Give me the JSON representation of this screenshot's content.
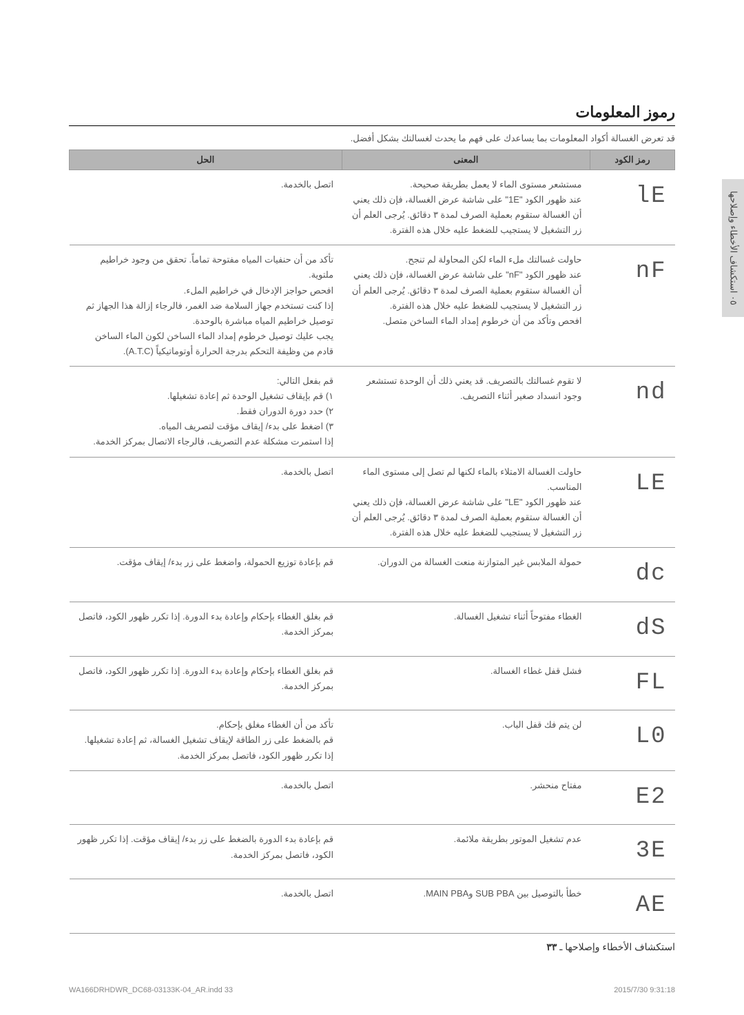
{
  "section_title": "رموز المعلومات",
  "intro": "قد تعرض الغسالة أكواد المعلومات بما يساعدك على فهم ما يحدث لغسالتك بشكل أفضل.",
  "side_tab": "٠٥ استكشاف الأخطاء وإصلاحها",
  "headers": {
    "code": "رمز الكود",
    "meaning": "المعنى",
    "solution": "الحل"
  },
  "rows": [
    {
      "code_glyph": "lE",
      "meaning": "مستشعر مستوى الماء لا يعمل بطريقة صحيحة.\nعند ظهور الكود \"1E\" على شاشة عرض الغسالة، فإن ذلك يعني أن الغسالة ستقوم بعملية الصرف لمدة ٣ دقائق. يُرجى العلم أن زر التشغيل لا يستجيب للضغط عليه خلال هذه الفترة.",
      "solution": "اتصل بالخدمة."
    },
    {
      "code_glyph": "nF",
      "meaning": "حاولت غسالتك ملء الماء لكن المحاولة لم تنجح.\nعند ظهور الكود \"nF\" على شاشة عرض الغسالة، فإن ذلك يعني أن الغسالة ستقوم بعملية الصرف لمدة ٣ دقائق. يُرجى العلم أن زر التشغيل لا يستجيب للضغط عليه خلال هذه الفترة.\nافحص وتأكد من أن خرطوم إمداد الماء الساخن متصل.",
      "solution": "تأكد من أن حنفيات المياه مفتوحة تماماً. تحقق من وجود خراطيم ملتوية.\nافحص حواجز الإدخال في خراطيم الملء.\nإذا كنت تستخدم جهاز السلامة ضد الغمر، فالرجاء إزالة هذا الجهاز ثم توصيل خراطيم المياه مباشرة بالوحدة.\nيجب عليك توصيل خرطوم إمداد الماء الساخن لكون الماء الساخن قادم من وظيفة التحكم بدرجة الحرارة أوتوماتيكياً (A.T.C)."
    },
    {
      "code_glyph": "nd",
      "meaning": "لا تقوم غسالتك بالتصريف. قد يعني ذلك أن الوحدة تستشعر وجود انسداد صغير أثناء التصريف.",
      "solution": "قم بفعل التالي:\n١) قم بإيقاف تشغيل الوحدة ثم إعادة تشغيلها.\n٢) حدد دورة الدوران فقط.\n٣) اضغط على بدء/ إيقاف مؤقت لتصريف المياه.\nإذا استمرت مشكلة عدم التصريف، فالرجاء الاتصال بمركز الخدمة."
    },
    {
      "code_glyph": "LE",
      "meaning": "حاولت الغسالة الامتلاء بالماء لكنها لم تصل إلى مستوى الماء المناسب.\nعند ظهور الكود \"LE\" على شاشة عرض الغسالة، فإن ذلك يعني أن الغسالة ستقوم بعملية الصرف لمدة ٣ دقائق. يُرجى العلم أن زر التشغيل لا يستجيب للضغط عليه خلال هذه الفترة.",
      "solution": "اتصل بالخدمة."
    },
    {
      "code_glyph": "dc",
      "meaning": "حمولة الملابس غير المتوازنة منعت الغسالة من الدوران.",
      "solution": "قم بإعادة توزيع الحمولة، واضغط على زر بدء/ إيقاف مؤقت."
    },
    {
      "code_glyph": "dS",
      "meaning": "الغطاء مفتوحاً أثناء تشغيل الغسالة.",
      "solution": "قم بغلق الغطاء بإحكام وإعادة بدء الدورة. إذا تكرر ظهور الكود، فاتصل بمركز الخدمة."
    },
    {
      "code_glyph": "FL",
      "meaning": "فشل قفل غطاء الغسالة.",
      "solution": "قم بغلق الغطاء بإحكام وإعادة بدء الدورة. إذا تكرر ظهور الكود، فاتصل بمركز الخدمة."
    },
    {
      "code_glyph": "L0",
      "meaning": "لن يتم فك قفل الباب.",
      "solution": "تأكد من أن الغطاء مغلق بإحكام.\nقم بالضغط على زر الطاقة لإيقاف تشغيل الغسالة، ثم إعادة تشغيلها. إذا تكرر ظهور الكود، فاتصل بمركز الخدمة."
    },
    {
      "code_glyph": "E2",
      "meaning": "مفتاح منحشر.",
      "solution": "اتصل بالخدمة."
    },
    {
      "code_glyph": "3E",
      "meaning": "عدم تشغيل الموتور بطريقة ملائمة.",
      "solution": "قم بإعادة بدء الدورة بالضغط على زر بدء/ إيقاف مؤقت. إذا تكرر ظهور الكود، فاتصل بمركز الخدمة."
    },
    {
      "code_glyph": "AE",
      "meaning": "خطأ بالتوصيل بين SUB PBA وMAIN PBA.",
      "solution": "اتصل بالخدمة."
    }
  ],
  "footer": {
    "text": "استكشاف الأخطاء وإصلاحها ـ",
    "page": "٣٣"
  },
  "print": {
    "file": "WA166DRHDWR_DC68-03133K-04_AR.indd   33",
    "timestamp": "2015/7/30   9:31:18"
  }
}
